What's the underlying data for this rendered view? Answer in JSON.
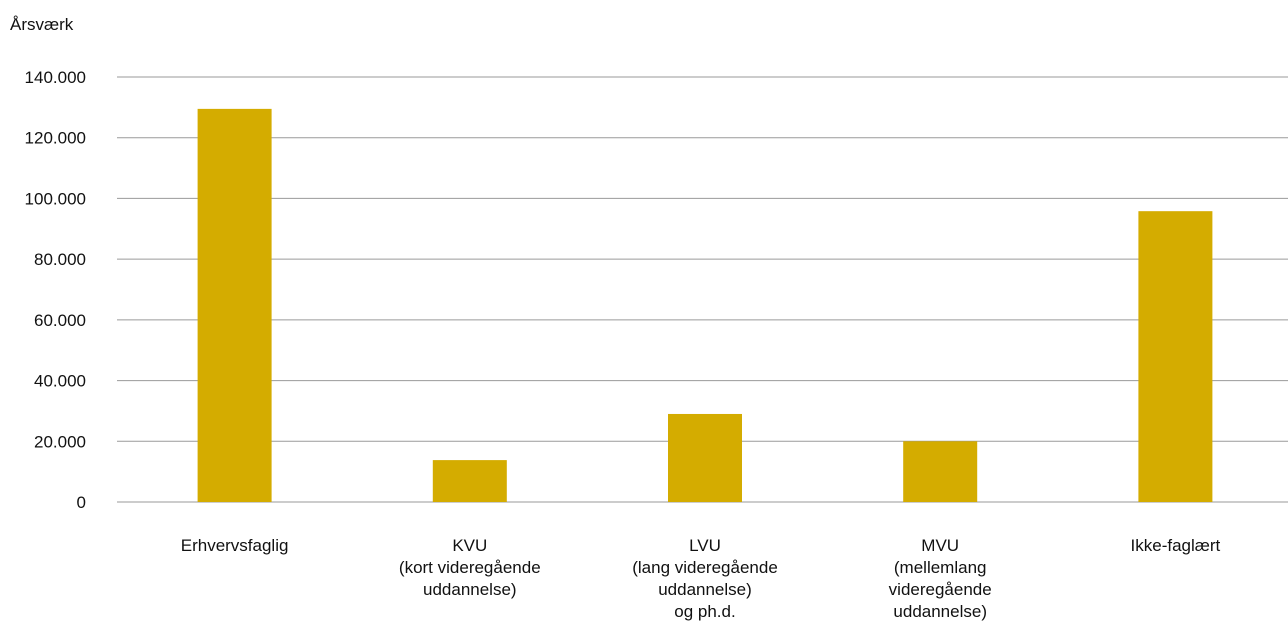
{
  "chart_data": {
    "type": "bar",
    "ylabel": "Årsværk",
    "xlabel": "",
    "ylim": [
      0,
      140000
    ],
    "yticks": [
      0,
      20000,
      40000,
      60000,
      80000,
      100000,
      120000,
      140000
    ],
    "ytick_labels": [
      "0",
      "20.000",
      "40.000",
      "60.000",
      "80.000",
      "100.000",
      "120.000",
      "140.000"
    ],
    "grid": true,
    "categories": [
      [
        "Erhvervsfaglig"
      ],
      [
        "KVU",
        "(kort videregående",
        "uddannelse)"
      ],
      [
        "LVU",
        "(lang videregående",
        "uddannelse)",
        "og ph.d."
      ],
      [
        "MVU",
        "(mellemlang",
        "videregående",
        "uddannelse)"
      ],
      [
        "Ikke-faglært"
      ]
    ],
    "values": [
      129500,
      13800,
      29000,
      20000,
      95800
    ],
    "bar_color": "#d4ac00"
  }
}
